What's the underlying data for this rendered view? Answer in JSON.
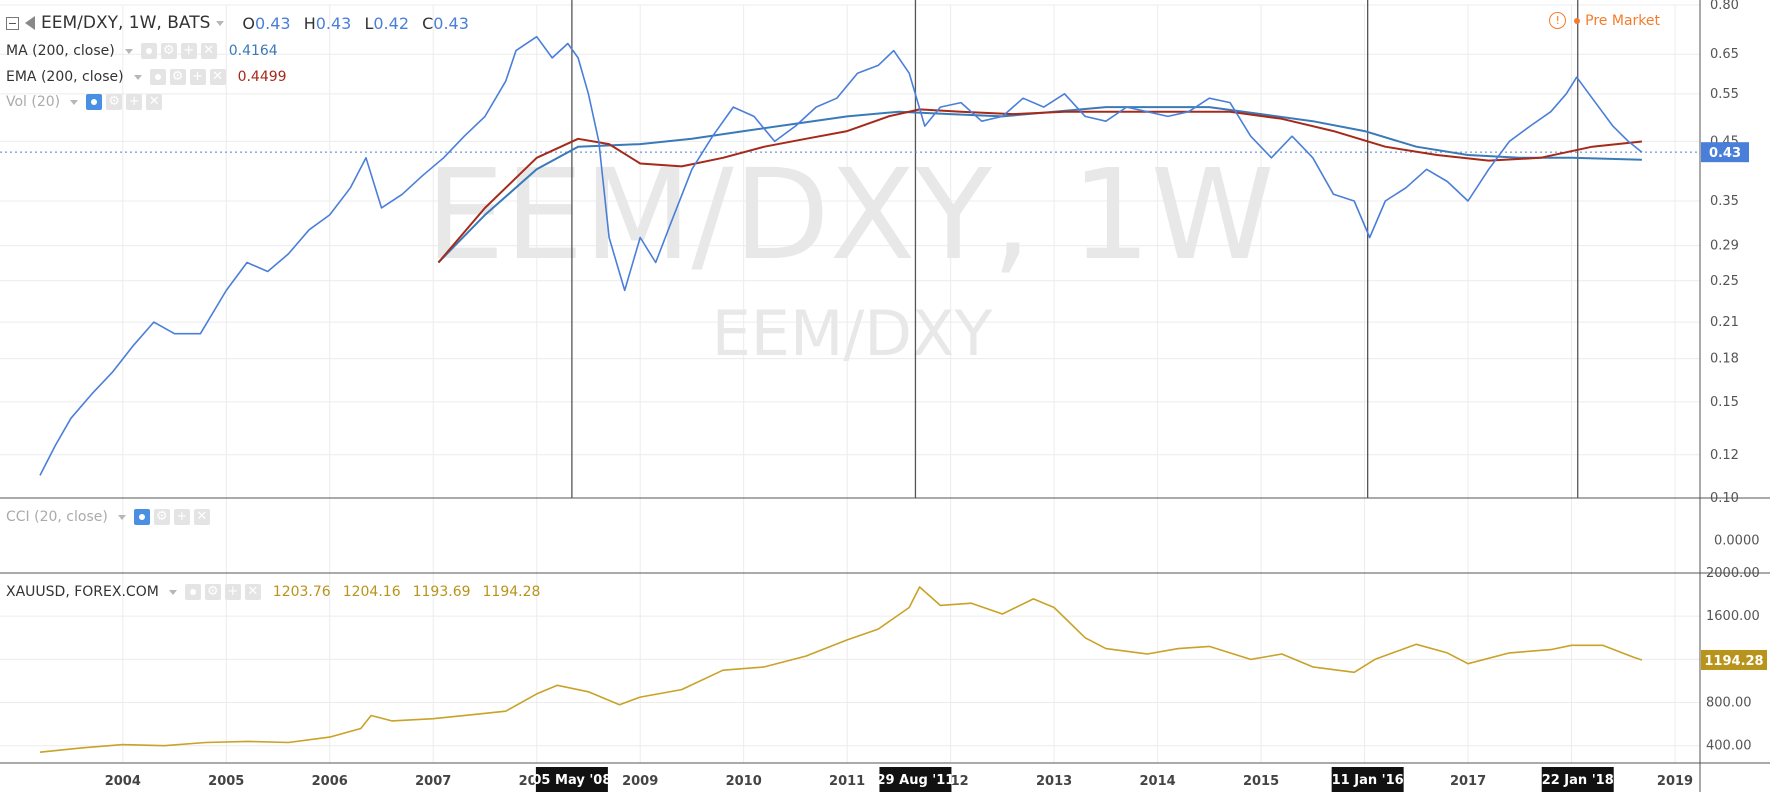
{
  "main_pane": {
    "symbol": "EEM/DXY, 1W, BATS",
    "ohlc": [
      {
        "k": "O",
        "v": "0.43"
      },
      {
        "k": "H",
        "v": "0.43"
      },
      {
        "k": "L",
        "v": "0.42"
      },
      {
        "k": "C",
        "v": "0.43"
      }
    ],
    "watermark_big": "EEM/DXY, 1W",
    "watermark_small": "EEM/DXY",
    "indicators": [
      {
        "name": "MA (200, close)",
        "value": "0.4164",
        "color": "#3a7ab8"
      },
      {
        "name": "EMA (200, close)",
        "value": "0.4499",
        "color": "#a52a1a"
      },
      {
        "name": "Vol (20)",
        "value": ""
      }
    ],
    "premarket": "Pre Market",
    "price_label": "0.43"
  },
  "cci_pane": {
    "name": "CCI (20, close)",
    "axis_label": "0.0000"
  },
  "gold_pane": {
    "name": "XAUUSD, FOREX.COM",
    "values": [
      "1203.76",
      "1204.16",
      "1193.69",
      "1194.28"
    ],
    "price_label": "1194.28"
  },
  "colors": {
    "price": "#4a7fd9",
    "ma": "#3a7ab8",
    "ema": "#a52a1a",
    "gold": "#c9a227",
    "grid": "#ececec",
    "axis_text": "#555555",
    "vline": "#555555"
  },
  "chart_data": [
    {
      "type": "line",
      "title": "EEM/DXY, 1W",
      "scale": "log",
      "ylim": [
        0.1,
        0.8
      ],
      "y_ticks": [
        "0.80",
        "0.65",
        "0.55",
        "0.45",
        "0.35",
        "0.29",
        "0.25",
        "0.21",
        "0.18",
        "0.15",
        "0.12",
        "0.10"
      ],
      "x_ticks": [
        "2004",
        "2005",
        "2006",
        "2007",
        "2008",
        "2009",
        "2010",
        "2011",
        "2012",
        "2013",
        "2014",
        "2015",
        "2016",
        "2017",
        "2018",
        "2019"
      ],
      "grid": true,
      "series": [
        {
          "name": "EEM/DXY",
          "x": [
            2003.2,
            2003.35,
            2003.5,
            2003.7,
            2003.9,
            2004.1,
            2004.3,
            2004.5,
            2004.75,
            2005.0,
            2005.2,
            2005.4,
            2005.6,
            2005.8,
            2006.0,
            2006.2,
            2006.35,
            2006.5,
            2006.7,
            2006.9,
            2007.1,
            2007.3,
            2007.5,
            2007.7,
            2007.8,
            2008.0,
            2008.15,
            2008.3,
            2008.4,
            2008.5,
            2008.6,
            2008.7,
            2008.85,
            2009.0,
            2009.15,
            2009.3,
            2009.5,
            2009.7,
            2009.9,
            2010.1,
            2010.3,
            2010.5,
            2010.7,
            2010.9,
            2011.1,
            2011.3,
            2011.45,
            2011.6,
            2011.75,
            2011.9,
            2012.1,
            2012.3,
            2012.5,
            2012.7,
            2012.9,
            2013.1,
            2013.3,
            2013.5,
            2013.7,
            2013.9,
            2014.1,
            2014.3,
            2014.5,
            2014.7,
            2014.9,
            2015.1,
            2015.3,
            2015.5,
            2015.7,
            2015.9,
            2016.05,
            2016.2,
            2016.4,
            2016.6,
            2016.8,
            2017.0,
            2017.2,
            2017.4,
            2017.6,
            2017.8,
            2017.95,
            2018.05,
            2018.2,
            2018.4,
            2018.55,
            2018.68
          ],
          "values": [
            0.11,
            0.125,
            0.14,
            0.155,
            0.17,
            0.19,
            0.21,
            0.2,
            0.2,
            0.24,
            0.27,
            0.26,
            0.28,
            0.31,
            0.33,
            0.37,
            0.42,
            0.34,
            0.36,
            0.39,
            0.42,
            0.46,
            0.5,
            0.58,
            0.66,
            0.7,
            0.64,
            0.68,
            0.64,
            0.55,
            0.45,
            0.3,
            0.24,
            0.3,
            0.27,
            0.32,
            0.4,
            0.46,
            0.52,
            0.5,
            0.45,
            0.48,
            0.52,
            0.54,
            0.6,
            0.62,
            0.66,
            0.6,
            0.48,
            0.52,
            0.53,
            0.49,
            0.5,
            0.54,
            0.52,
            0.55,
            0.5,
            0.49,
            0.52,
            0.51,
            0.5,
            0.51,
            0.54,
            0.53,
            0.46,
            0.42,
            0.46,
            0.42,
            0.36,
            0.35,
            0.3,
            0.35,
            0.37,
            0.4,
            0.38,
            0.35,
            0.4,
            0.45,
            0.48,
            0.51,
            0.55,
            0.59,
            0.54,
            0.48,
            0.45,
            0.43
          ]
        },
        {
          "name": "MA (200, close)",
          "x": [
            2007.05,
            2007.5,
            2008.0,
            2008.4,
            2009.0,
            2009.5,
            2010.0,
            2010.5,
            2011.0,
            2011.5,
            2012.0,
            2012.5,
            2013.0,
            2013.5,
            2014.0,
            2014.5,
            2015.0,
            2015.5,
            2016.0,
            2016.5,
            2017.0,
            2017.5,
            2018.0,
            2018.68
          ],
          "values": [
            0.27,
            0.33,
            0.4,
            0.44,
            0.445,
            0.455,
            0.47,
            0.485,
            0.5,
            0.51,
            0.505,
            0.5,
            0.51,
            0.52,
            0.52,
            0.52,
            0.505,
            0.49,
            0.47,
            0.44,
            0.425,
            0.42,
            0.42,
            0.4164
          ]
        },
        {
          "name": "EMA (200, close)",
          "x": [
            2007.05,
            2007.5,
            2008.0,
            2008.4,
            2008.7,
            2009.0,
            2009.4,
            2009.8,
            2010.2,
            2010.6,
            2011.0,
            2011.4,
            2011.7,
            2012.1,
            2012.6,
            2013.1,
            2013.6,
            2014.1,
            2014.7,
            2015.2,
            2015.7,
            2016.2,
            2016.7,
            2017.2,
            2017.7,
            2018.2,
            2018.68
          ],
          "values": [
            0.27,
            0.34,
            0.42,
            0.455,
            0.445,
            0.41,
            0.405,
            0.42,
            0.44,
            0.455,
            0.47,
            0.5,
            0.515,
            0.51,
            0.505,
            0.51,
            0.51,
            0.51,
            0.51,
            0.495,
            0.47,
            0.44,
            0.425,
            0.415,
            0.42,
            0.44,
            0.4499
          ]
        }
      ]
    },
    {
      "type": "line",
      "title": "CCI (20, close)",
      "y_ticks": [
        "0.0000"
      ],
      "series": []
    },
    {
      "type": "line",
      "title": "XAUUSD, FOREX.COM",
      "ylim": [
        240,
        2000
      ],
      "y_ticks": [
        "2000.00",
        "1600.00",
        "1200.00",
        "800.00",
        "400.00"
      ],
      "series": [
        {
          "name": "XAUUSD",
          "x": [
            2003.2,
            2003.6,
            2004.0,
            2004.4,
            2004.8,
            2005.2,
            2005.6,
            2006.0,
            2006.3,
            2006.4,
            2006.6,
            2007.0,
            2007.4,
            2007.7,
            2008.0,
            2008.2,
            2008.5,
            2008.8,
            2009.0,
            2009.4,
            2009.8,
            2010.2,
            2010.6,
            2011.0,
            2011.3,
            2011.6,
            2011.7,
            2011.9,
            2012.2,
            2012.5,
            2012.8,
            2013.0,
            2013.3,
            2013.5,
            2013.9,
            2014.2,
            2014.5,
            2014.9,
            2015.2,
            2015.5,
            2015.9,
            2016.1,
            2016.3,
            2016.5,
            2016.8,
            2017.0,
            2017.4,
            2017.8,
            2018.0,
            2018.3,
            2018.6,
            2018.68
          ],
          "values": [
            340,
            380,
            410,
            400,
            430,
            440,
            430,
            480,
            560,
            680,
            630,
            650,
            690,
            720,
            880,
            960,
            900,
            780,
            850,
            920,
            1100,
            1130,
            1230,
            1380,
            1480,
            1680,
            1870,
            1700,
            1720,
            1620,
            1760,
            1680,
            1400,
            1300,
            1250,
            1300,
            1320,
            1200,
            1250,
            1130,
            1080,
            1200,
            1270,
            1340,
            1260,
            1160,
            1260,
            1290,
            1330,
            1330,
            1220,
            1194.28
          ]
        }
      ]
    }
  ],
  "events": [
    "05 May '08",
    "29 Aug '11",
    "11 Jan '16",
    "22 Jan '18"
  ]
}
